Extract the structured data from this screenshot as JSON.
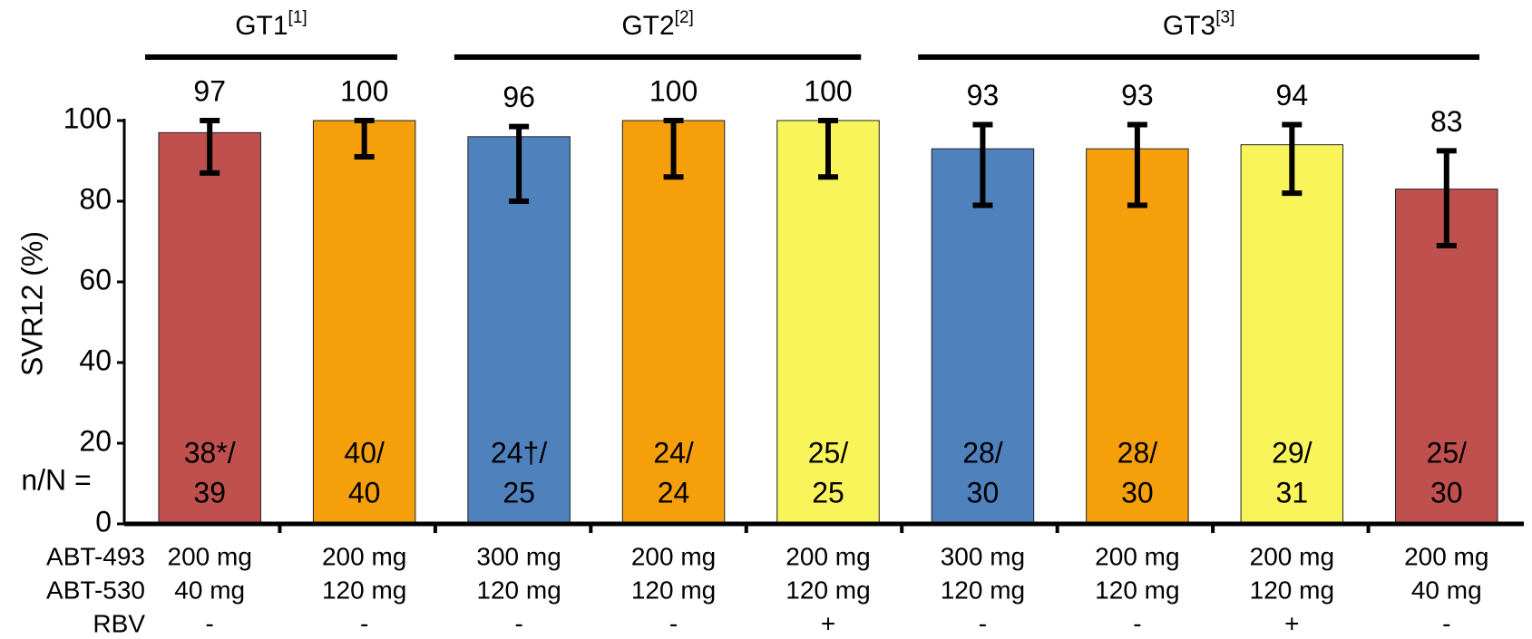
{
  "chart_data": {
    "type": "bar",
    "y_label": "SVR12 (%)",
    "count_label": "n/N =",
    "ylim": [
      0,
      100
    ],
    "yticks": [
      0,
      20,
      40,
      60,
      80,
      100
    ],
    "values": [
      97,
      100,
      96,
      100,
      100,
      93,
      93,
      94,
      83
    ],
    "err_low": [
      87,
      91,
      80,
      86,
      86,
      79,
      79,
      82,
      69
    ],
    "err_high": [
      100,
      100,
      98.5,
      100,
      100,
      99,
      99,
      99,
      92.5
    ],
    "colors": [
      "#c0504d",
      "#f5a00a",
      "#4f81bd",
      "#f5a00a",
      "#f8f45a",
      "#4f81bd",
      "#f5a00a",
      "#f8f45a",
      "#c0504d"
    ],
    "counts": [
      [
        "38*/",
        "39"
      ],
      [
        "40/",
        "40"
      ],
      [
        "24†/",
        "25"
      ],
      [
        "24/",
        "24"
      ],
      [
        "25/",
        "25"
      ],
      [
        "28/",
        "30"
      ],
      [
        "28/",
        "30"
      ],
      [
        "29/",
        "31"
      ],
      [
        "25/",
        "30"
      ]
    ],
    "groups": [
      {
        "name": "GT1",
        "ref": "[1]",
        "bars": [
          0,
          1
        ]
      },
      {
        "name": "GT2",
        "ref": "[2]",
        "bars": [
          2,
          4
        ]
      },
      {
        "name": "GT3",
        "ref": "[3]",
        "bars": [
          5,
          8
        ]
      }
    ],
    "regimen_rows": [
      {
        "label": "ABT-493",
        "values": [
          "200 mg",
          "200 mg",
          "300 mg",
          "200 mg",
          "200 mg",
          "300 mg",
          "200 mg",
          "200 mg",
          "200 mg"
        ]
      },
      {
        "label": "ABT-530",
        "values": [
          "40 mg",
          "120 mg",
          "120 mg",
          "120 mg",
          "120 mg",
          "120 mg",
          "120 mg",
          "120 mg",
          "40 mg"
        ]
      },
      {
        "label": "RBV",
        "values": [
          "-",
          "-",
          "-",
          "-",
          "+",
          "-",
          "-",
          "+",
          "-"
        ]
      }
    ]
  }
}
